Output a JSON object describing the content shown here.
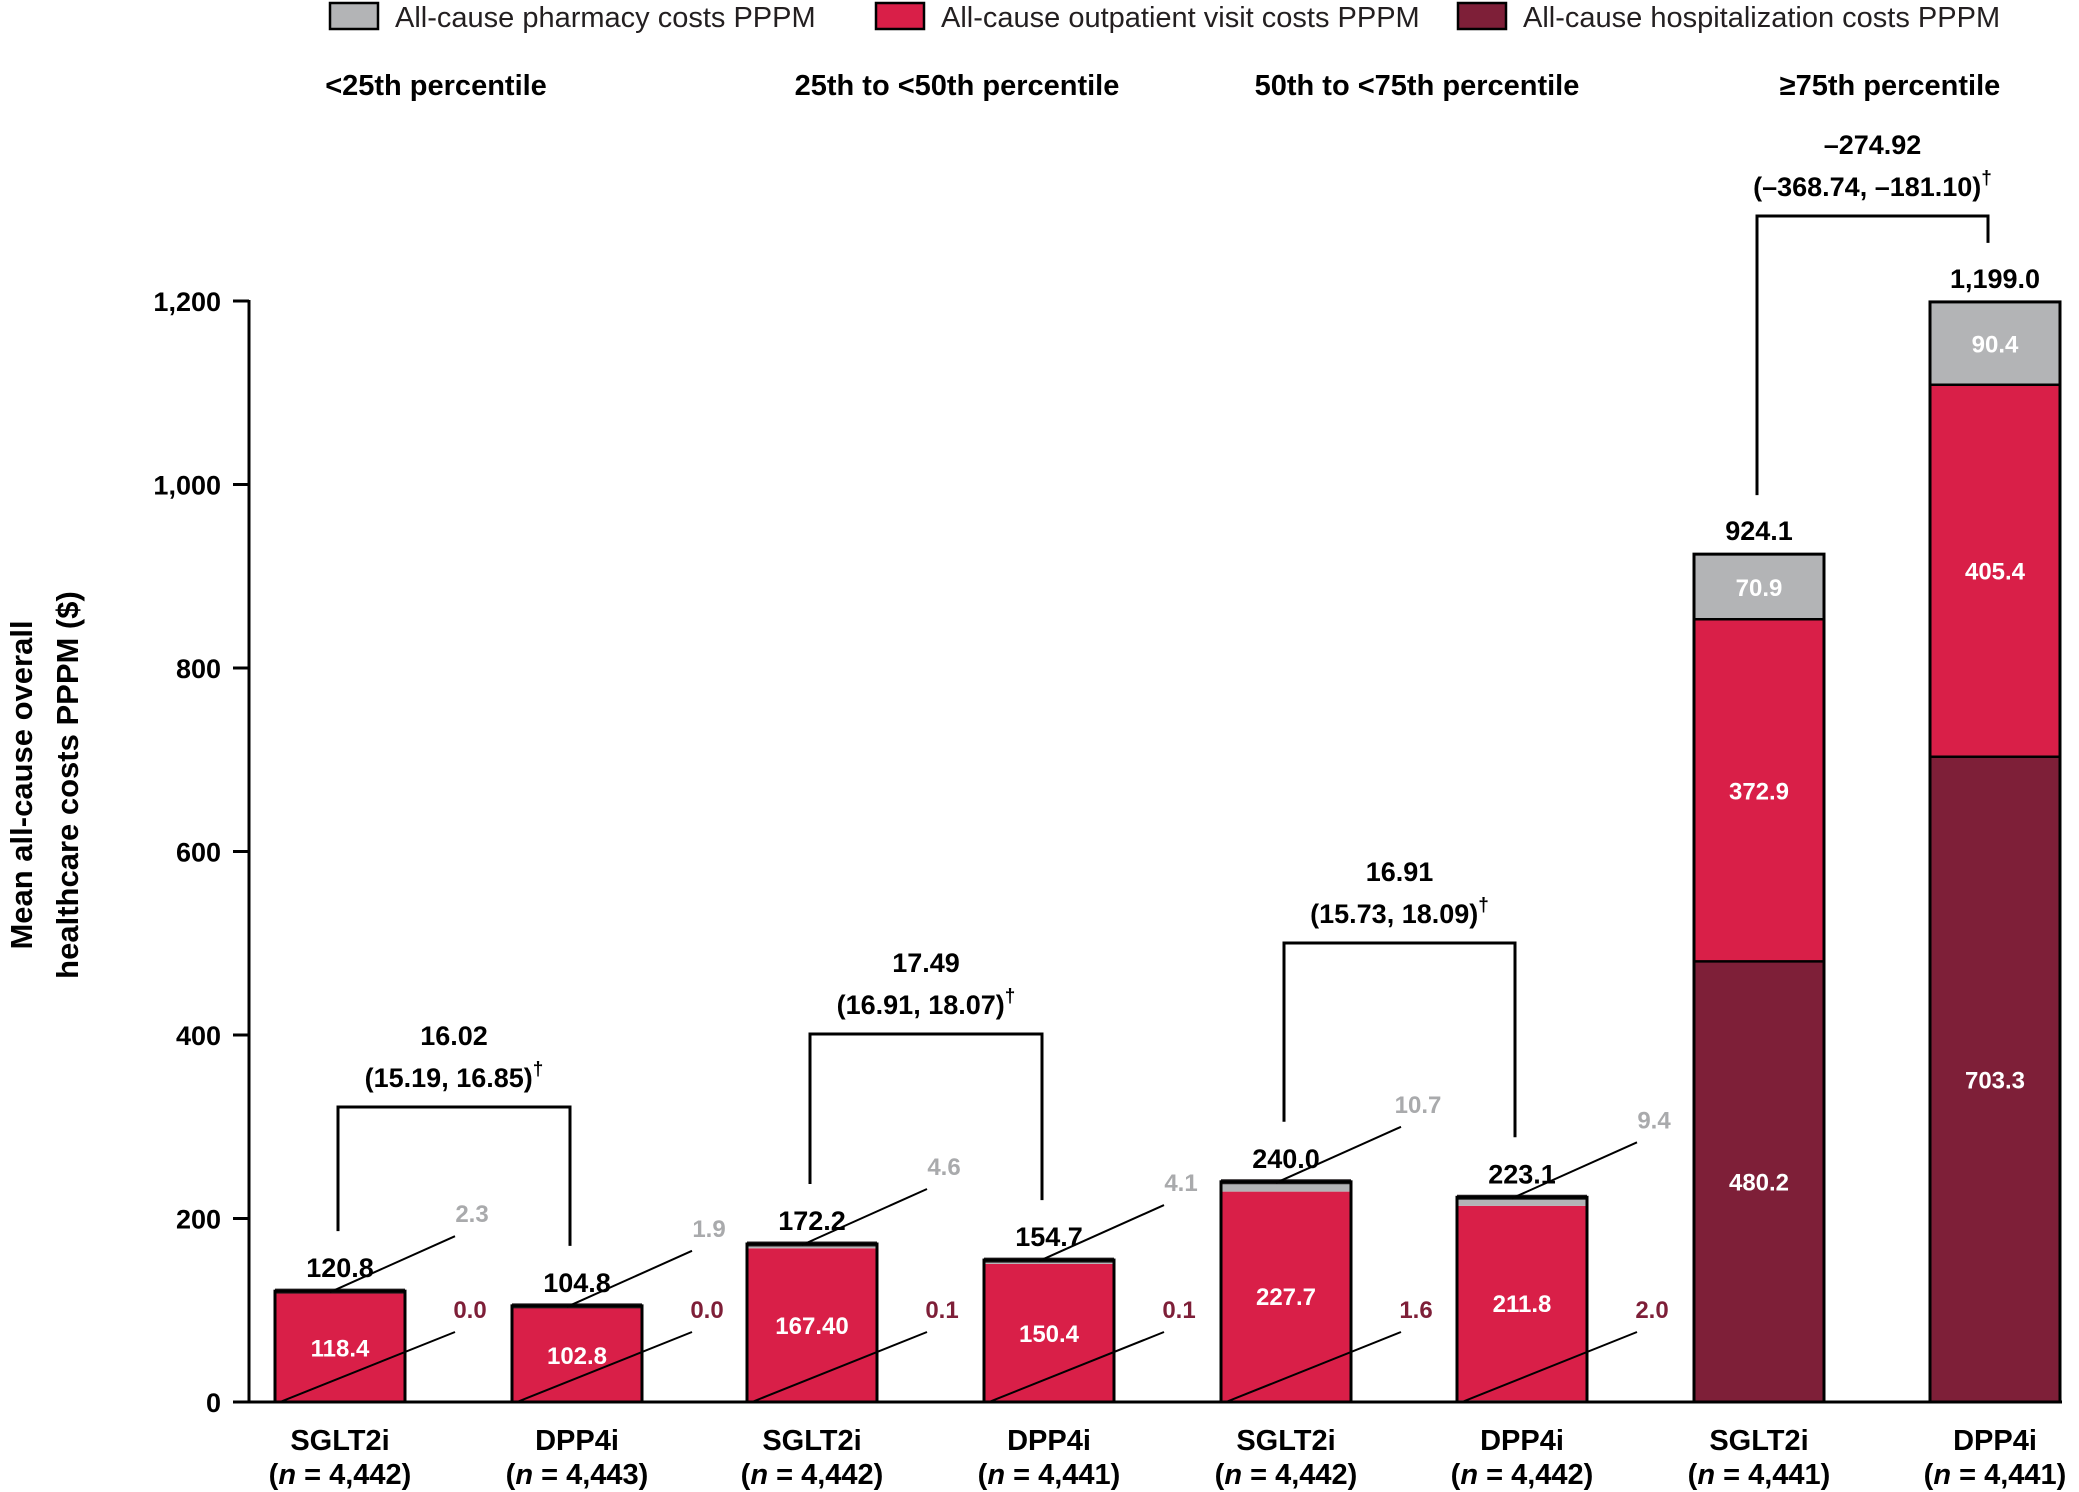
{
  "chart_data": {
    "type": "bar",
    "stacked": true,
    "ylabel_lines": [
      "Mean all-cause overall",
      "healthcare costs PPPM ($)"
    ],
    "ylim": [
      0,
      1200
    ],
    "yticks": [
      "0",
      "200",
      "400",
      "600",
      "800",
      "1,000",
      "1,200"
    ],
    "ytick_values": [
      0,
      200,
      400,
      600,
      800,
      1000,
      1200
    ],
    "colors": {
      "pharmacy": "#b3b4b6",
      "outpatient": "#d91f48",
      "hospitalization": "#7e1f38",
      "pharmacy_text": "#a9aaac",
      "hospitalization_text": "#7e1f38"
    },
    "legend": [
      {
        "key": "pharmacy",
        "label": "All-cause pharmacy costs PPPM"
      },
      {
        "key": "outpatient",
        "label": "All-cause outpatient visit costs PPPM"
      },
      {
        "key": "hospitalization",
        "label": "All-cause hospitalization costs PPPM"
      }
    ],
    "groups": [
      {
        "title": "<25th percentile",
        "difference": {
          "value": "16.02",
          "ci": "(15.19, 16.85)",
          "mark": "†"
        },
        "bars": [
          {
            "drug": "SGLT2i",
            "n": "4,442",
            "total": 120.8,
            "total_label": "120.8",
            "hospitalization": 0.0,
            "hospitalization_label": "0.0",
            "outpatient": 118.4,
            "outpatient_label": "118.4",
            "pharmacy": 2.3,
            "pharmacy_label": "2.3"
          },
          {
            "drug": "DPP4i",
            "n": "4,443",
            "total": 104.8,
            "total_label": "104.8",
            "hospitalization": 0.0,
            "hospitalization_label": "0.0",
            "outpatient": 102.8,
            "outpatient_label": "102.8",
            "pharmacy": 1.9,
            "pharmacy_label": "1.9"
          }
        ]
      },
      {
        "title": "25th to <50th percentile",
        "difference": {
          "value": "17.49",
          "ci": "(16.91, 18.07)",
          "mark": "†"
        },
        "bars": [
          {
            "drug": "SGLT2i",
            "n": "4,442",
            "total": 172.2,
            "total_label": "172.2",
            "hospitalization": 0.1,
            "hospitalization_label": "0.1",
            "outpatient": 167.4,
            "outpatient_label": "167.40",
            "pharmacy": 4.6,
            "pharmacy_label": "4.6"
          },
          {
            "drug": "DPP4i",
            "n": "4,441",
            "total": 154.7,
            "total_label": "154.7",
            "hospitalization": 0.1,
            "hospitalization_label": "0.1",
            "outpatient": 150.4,
            "outpatient_label": "150.4",
            "pharmacy": 4.1,
            "pharmacy_label": "4.1"
          }
        ]
      },
      {
        "title": "50th to <75th percentile",
        "difference": {
          "value": "16.91",
          "ci": "(15.73, 18.09)",
          "mark": "†"
        },
        "bars": [
          {
            "drug": "SGLT2i",
            "n": "4,442",
            "total": 240.0,
            "total_label": "240.0",
            "hospitalization": 1.6,
            "hospitalization_label": "1.6",
            "outpatient": 227.7,
            "outpatient_label": "227.7",
            "pharmacy": 10.7,
            "pharmacy_label": "10.7"
          },
          {
            "drug": "DPP4i",
            "n": "4,442",
            "total": 223.1,
            "total_label": "223.1",
            "hospitalization": 2.0,
            "hospitalization_label": "2.0",
            "outpatient": 211.8,
            "outpatient_label": "211.8",
            "pharmacy": 9.4,
            "pharmacy_label": "9.4"
          }
        ]
      },
      {
        "title": "≥75th percentile",
        "difference": {
          "value": "–274.92",
          "ci": "(–368.74, –181.10)",
          "mark": "†"
        },
        "bars": [
          {
            "drug": "SGLT2i",
            "n": "4,441",
            "total": 924.1,
            "total_label": "924.1",
            "hospitalization": 480.2,
            "hospitalization_label": "480.2",
            "outpatient": 372.9,
            "outpatient_label": "372.9",
            "pharmacy": 70.9,
            "pharmacy_label": "70.9"
          },
          {
            "drug": "DPP4i",
            "n": "4,441",
            "total": 1199.0,
            "total_label": "1,199.0",
            "hospitalization": 703.3,
            "hospitalization_label": "703.3",
            "outpatient": 405.4,
            "outpatient_label": "405.4",
            "pharmacy": 90.4,
            "pharmacy_label": "90.4"
          }
        ]
      }
    ]
  }
}
